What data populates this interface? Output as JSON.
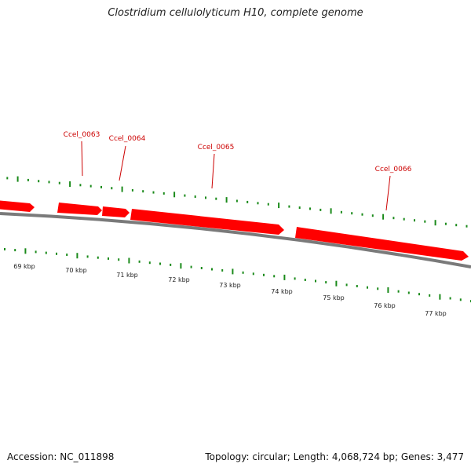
{
  "title": "Clostridium cellulolyticum H10, complete genome",
  "footer": {
    "accession": "Accession: NC_011898",
    "summary": "Topology: circular; Length: 4,068,724 bp; Genes: 3,477"
  },
  "colors": {
    "gene": "#ff0000",
    "gene_label": "#cc0000",
    "tick": "#1a8a1a",
    "backbone": "#7a7a7a"
  },
  "ruler_labels": [
    "69 kbp",
    "70 kbp",
    "71 kbp",
    "72 kbp",
    "73 kbp",
    "74 kbp",
    "75 kbp",
    "76 kbp",
    "77 kbp"
  ],
  "genes": [
    {
      "id": "Ccel_0062",
      "label": ""
    },
    {
      "id": "Ccel_0063",
      "label": "Ccel_0063"
    },
    {
      "id": "Ccel_0064",
      "label": "Ccel_0064"
    },
    {
      "id": "Ccel_0065",
      "label": "Ccel_0065"
    },
    {
      "id": "Ccel_0066",
      "label": "Ccel_0066"
    }
  ]
}
